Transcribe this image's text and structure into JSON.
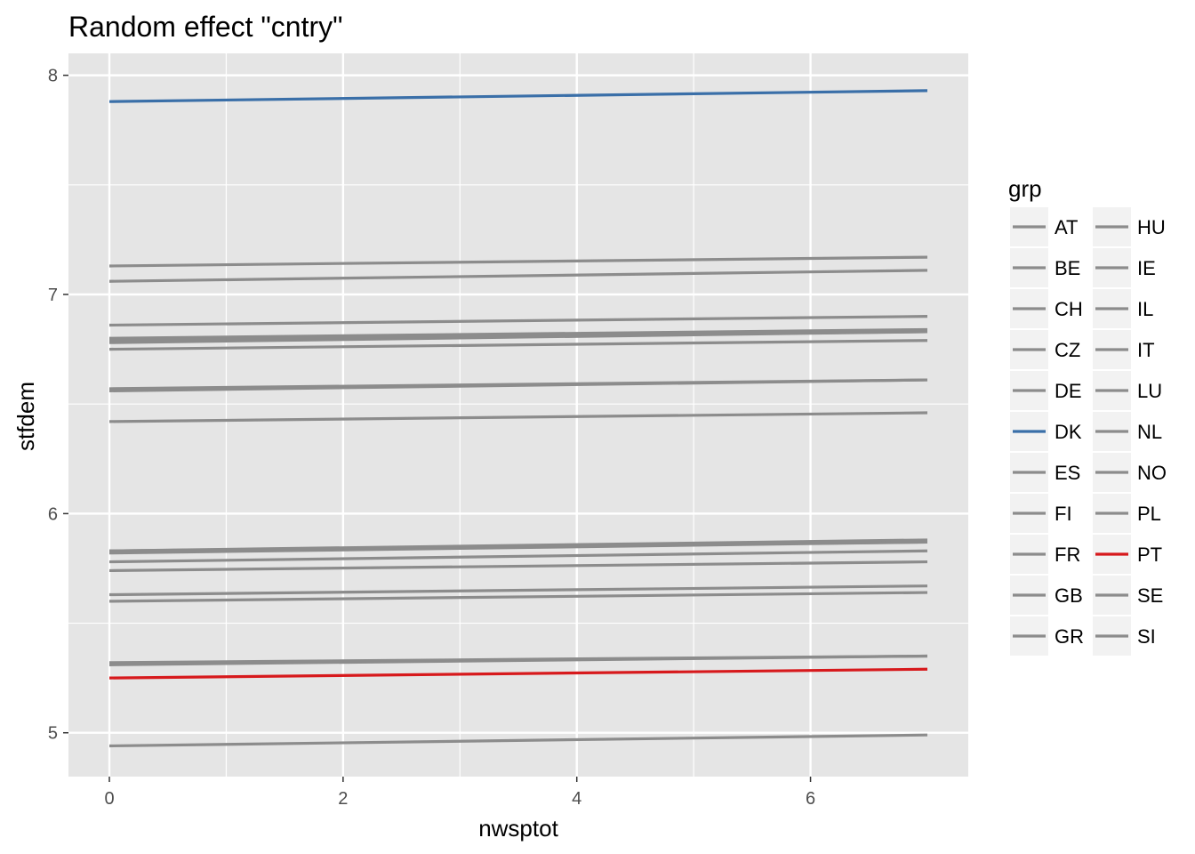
{
  "chart_data": {
    "type": "line",
    "title": "Random effect \"cntry\"",
    "xlabel": "nwsptot",
    "ylabel": "stfdem",
    "xlim": [
      -0.35,
      7.35
    ],
    "ylim": [
      4.8,
      8.1
    ],
    "xticks": [
      0,
      2,
      4,
      6
    ],
    "yticks": [
      5,
      6,
      7,
      8
    ],
    "grid": true,
    "legend_title": "grp",
    "legend_position": "right",
    "colors": {
      "default": "#8c8c8c",
      "highlight_blue": "#3a6fa8",
      "highlight_red": "#d7191c",
      "panel": "#e5e5e5",
      "grid": "#ffffff"
    },
    "series": [
      {
        "name": "AT",
        "x": [
          0,
          7
        ],
        "y": [
          6.8,
          6.84
        ]
      },
      {
        "name": "BE",
        "x": [
          0,
          7
        ],
        "y": [
          5.78,
          5.83
        ]
      },
      {
        "name": "CH",
        "x": [
          0,
          7
        ],
        "y": [
          7.13,
          7.17
        ]
      },
      {
        "name": "CZ",
        "x": [
          0,
          7
        ],
        "y": [
          5.6,
          5.64
        ]
      },
      {
        "name": "DE",
        "x": [
          0,
          7
        ],
        "y": [
          5.83,
          5.88
        ]
      },
      {
        "name": "DK",
        "x": [
          0,
          7
        ],
        "y": [
          7.88,
          7.93
        ],
        "color": "#3a6fa8"
      },
      {
        "name": "ES",
        "x": [
          0,
          7
        ],
        "y": [
          5.74,
          5.78
        ]
      },
      {
        "name": "FI",
        "x": [
          0,
          7
        ],
        "y": [
          6.86,
          6.9
        ]
      },
      {
        "name": "FR",
        "x": [
          0,
          7
        ],
        "y": [
          5.31,
          5.35
        ]
      },
      {
        "name": "GB",
        "x": [
          0,
          7
        ],
        "y": [
          5.82,
          5.87
        ]
      },
      {
        "name": "GR",
        "x": [
          0,
          7
        ],
        "y": [
          4.94,
          4.99
        ]
      },
      {
        "name": "HU",
        "x": [
          0,
          7
        ],
        "y": [
          5.63,
          5.67
        ]
      },
      {
        "name": "IE",
        "x": [
          0,
          7
        ],
        "y": [
          6.56,
          6.61
        ]
      },
      {
        "name": "IL",
        "x": [
          0,
          7
        ],
        "y": [
          6.42,
          6.46
        ]
      },
      {
        "name": "IT",
        "x": [
          0,
          7
        ],
        "y": [
          5.83,
          5.87
        ]
      },
      {
        "name": "LU",
        "x": [
          0,
          7
        ],
        "y": [
          6.78,
          6.83
        ]
      },
      {
        "name": "NL",
        "x": [
          0,
          7
        ],
        "y": [
          6.57,
          6.61
        ]
      },
      {
        "name": "NO",
        "x": [
          0,
          7
        ],
        "y": [
          7.06,
          7.11
        ]
      },
      {
        "name": "PL",
        "x": [
          0,
          7
        ],
        "y": [
          5.32,
          5.35
        ]
      },
      {
        "name": "PT",
        "x": [
          0,
          7
        ],
        "y": [
          5.25,
          5.29
        ],
        "color": "#d7191c"
      },
      {
        "name": "SE",
        "x": [
          0,
          7
        ],
        "y": [
          6.79,
          6.83
        ]
      },
      {
        "name": "SI",
        "x": [
          0,
          7
        ],
        "y": [
          6.75,
          6.79
        ]
      }
    ]
  }
}
